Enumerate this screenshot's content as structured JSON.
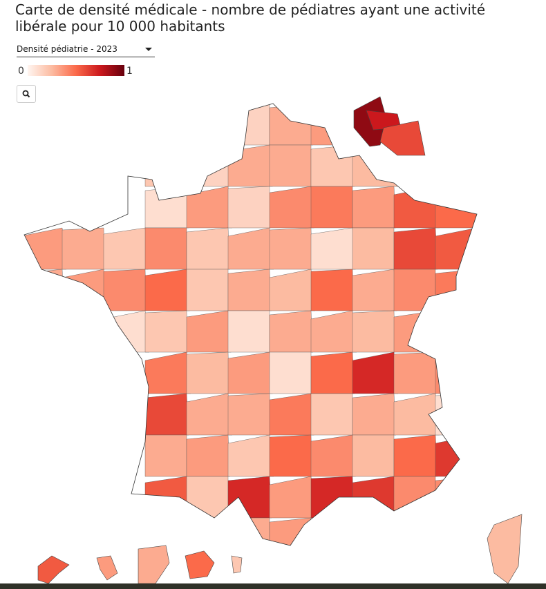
{
  "header": {
    "title": "Carte de densité médicale - nombre de pédiatres ayant une activité libérale pour 10 000 habitants",
    "selector": "Densité pédiatrie - 2023"
  },
  "legend": {
    "min": 0,
    "max": 1
  },
  "map": {
    "values": [
      0.15,
      0.3,
      0.35,
      0.2,
      0.15,
      0.3,
      0.3,
      0.2,
      0.25,
      0.1,
      0.35,
      0.15,
      0.4,
      0.45,
      0.35,
      0.55,
      0.5,
      0.35,
      0.3,
      0.2,
      0.4,
      0.2,
      0.3,
      0.3,
      0.1,
      0.25,
      0.6,
      0.55,
      0.3,
      0.35,
      0.4,
      0.5,
      0.2,
      0.3,
      0.25,
      0.5,
      0.3,
      0.4,
      0.45,
      0.1,
      0.2,
      0.35,
      0.1,
      0.3,
      0.3,
      0.25,
      0.35,
      0.45,
      0.25,
      0.35,
      0.1,
      0.5,
      0.7,
      0.35,
      0.4,
      0.6,
      0.3,
      0.3,
      0.45,
      0.2,
      0.3,
      0.25,
      0.1,
      0.3,
      0.35,
      0.2,
      0.5,
      0.4,
      0.25,
      0.5,
      0.65,
      0.55,
      0.2,
      0.7,
      0.35,
      0.7,
      0.65,
      0.4,
      0.4,
      0.3,
      0.35,
      0.3,
      0.9,
      0.75,
      0.6,
      0.25,
      0.55,
      0.35,
      0.3,
      0.5,
      0.2
    ]
  }
}
